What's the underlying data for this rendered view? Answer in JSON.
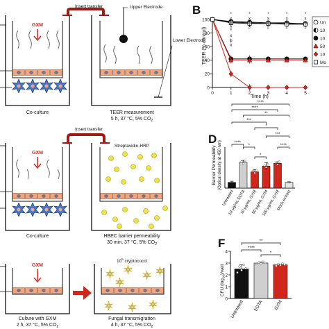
{
  "panels": {
    "B": "B",
    "D": "D",
    "F": "F"
  },
  "row1": {
    "gxm": "GXM",
    "insert_transfer": "Insert transfer",
    "upper_electrode": "Upper Electrode",
    "lower_electrode": "Lower Electrode",
    "left_caption": "Co-culture",
    "right_caption_1": "TEER measurement",
    "right_caption_2": "5 h, 37 °C, 5% CO",
    "right_caption_sub": "2"
  },
  "row2": {
    "gxm": "GXM",
    "insert_transfer": "Insert transfer",
    "reagent": "Streptavidin-HRP",
    "left_caption": "Co-culture",
    "right_caption_1": "HBEC barrier permeability",
    "right_caption_2": "30 min, 37 °C, 5% CO",
    "right_caption_sub": "2"
  },
  "row3": {
    "gxm": "GXM",
    "reagent": "10",
    "reagent_sup": "5",
    "reagent_rest": " cryptococci",
    "left_caption_1": "Culture with GXM",
    "left_caption_2": "2 h, 37 °C, 5% CO",
    "left_caption_sub": "2",
    "right_caption_1": "Fungal transmigration",
    "right_caption_2": "4 h, 37 °C, 5% CO",
    "right_caption_sub": "2"
  },
  "colors": {
    "red": "#d0261c",
    "dark_red": "#9e1c14",
    "cell_fill": "#f0a57e",
    "astro_fill": "#4a78c8",
    "yellow": "#f2e24a",
    "gray_bar": "#cfcfcf",
    "black": "#111111"
  },
  "chart_data": [
    {
      "type": "line",
      "panel": "B",
      "xlabel": "Time (h)",
      "ylabel": "TEER (% control)",
      "x": [
        0,
        1,
        2,
        3,
        4,
        5
      ],
      "xlim": [
        0,
        5
      ],
      "ylim": [
        0,
        100
      ],
      "yticks": [
        0,
        20,
        40,
        60,
        80,
        100
      ],
      "series": [
        {
          "name": "Un",
          "color": "#ffffff",
          "marker": "circle-open",
          "values": [
            100,
            97,
            96,
            95,
            95,
            93
          ]
        },
        {
          "name": "10",
          "color": "#111111",
          "marker": "circle-half",
          "values": [
            100,
            96,
            95,
            94,
            94,
            94
          ]
        },
        {
          "name": "10",
          "color": "#111111",
          "marker": "circle-filled",
          "values": [
            100,
            42,
            42,
            42,
            42,
            42
          ]
        },
        {
          "name": "50",
          "color": "#d0261c",
          "marker": "triangle",
          "values": [
            100,
            40,
            40,
            40,
            40,
            40
          ]
        },
        {
          "name": "10",
          "color": "#d0261c",
          "marker": "diamond",
          "values": [
            100,
            20,
            0,
            0,
            0,
            0
          ]
        },
        {
          "name": "Mo",
          "color": "#ffffff",
          "marker": "square-open",
          "values": [
            100,
            95,
            94,
            94,
            93,
            93
          ]
        }
      ]
    },
    {
      "type": "bar",
      "panel": "D",
      "ylabel_1": "Barrier Permeability",
      "ylabel_2": "(Optical density at 450 nm)",
      "categories": [
        "Untreated",
        "10 μg/mL EDTA",
        "10 μg/mL GXM",
        "50 μg/mL GXM",
        "100 μg/mL GXM",
        "Mock extract"
      ],
      "values": [
        0.03,
        0.135,
        0.085,
        0.115,
        0.13,
        0.03
      ],
      "ylim": [
        0,
        0.2
      ],
      "significance": [
        "****",
        "****",
        "***",
        "**",
        "*",
        "***",
        "*",
        "*",
        "****",
        "****"
      ]
    },
    {
      "type": "bar",
      "panel": "F",
      "ylabel": "CFU (log",
      "ylabel_sub": "10",
      "ylabel_rest": ")/well",
      "categories": [
        "Untreated",
        "EDTA",
        "GXM"
      ],
      "values": [
        2.5,
        3.0,
        2.85
      ],
      "ylim": [
        0,
        4
      ],
      "yticks": [
        0,
        1,
        2,
        3,
        4
      ],
      "significance": [
        "**",
        "****",
        "*"
      ]
    }
  ]
}
